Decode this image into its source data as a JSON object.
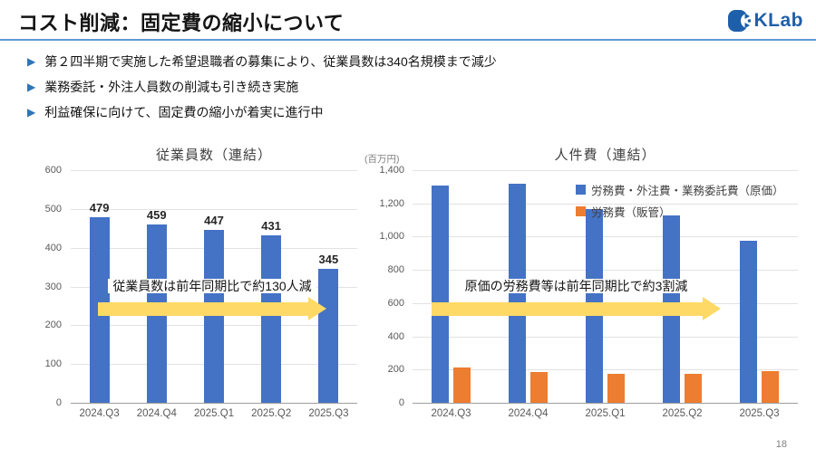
{
  "header": {
    "title": "コスト削減：固定費の縮小について",
    "logo_text": "KLab"
  },
  "bullets": [
    "第２四半期で実施した希望退職者の募集により、従業員数は340名規模まで減少",
    "業務委託・外注人員数の削減も引き続き実施",
    "利益確保に向けて、固定費の縮小が着実に進行中"
  ],
  "colors": {
    "bar_blue": "#4472C4",
    "bar_orange": "#ED7D31",
    "arrow_yellow": "#FFD966",
    "header_line": "#5B9BD5",
    "bullet_marker": "#2E75B6",
    "logo_blue": "#1E5FA9"
  },
  "chart_data": [
    {
      "type": "bar",
      "title": "従業員数（連結）",
      "categories": [
        "2024.Q3",
        "2024.Q4",
        "2025.Q1",
        "2025.Q2",
        "2025.Q3"
      ],
      "values": [
        479,
        459,
        447,
        431,
        345
      ],
      "bar_color": "#4472C4",
      "data_labels": true,
      "ylim": [
        0,
        600
      ],
      "yticks": [
        "600",
        "500",
        "400",
        "300",
        "200",
        "100",
        "0"
      ],
      "xlabel": "",
      "ylabel": "",
      "grid": "horizontal",
      "annotation": "従業員数は前年同期比で約130人減"
    },
    {
      "type": "bar",
      "title": "人件費（連結）",
      "unit_label": "(百万円)",
      "categories": [
        "2024.Q3",
        "2024.Q4",
        "2025.Q1",
        "2025.Q2",
        "2025.Q3"
      ],
      "series": [
        {
          "name": "労務費・外注費・業務委託費（原価）",
          "color": "#4472C4",
          "values": [
            1310,
            1320,
            1165,
            1130,
            975
          ]
        },
        {
          "name": "労務費（販管）",
          "color": "#ED7D31",
          "values": [
            215,
            183,
            176,
            172,
            193
          ]
        }
      ],
      "data_labels": false,
      "ylim": [
        0,
        1400
      ],
      "yticks": [
        "1,400",
        "1,200",
        "1,000",
        "800",
        "600",
        "400",
        "200",
        "0"
      ],
      "xlabel": "",
      "ylabel": "",
      "grid": "horizontal",
      "legend_position": "top-right",
      "annotation": "原価の労務費等は前年同期比で約3割減"
    }
  ],
  "footer": {
    "page_number": "18"
  }
}
